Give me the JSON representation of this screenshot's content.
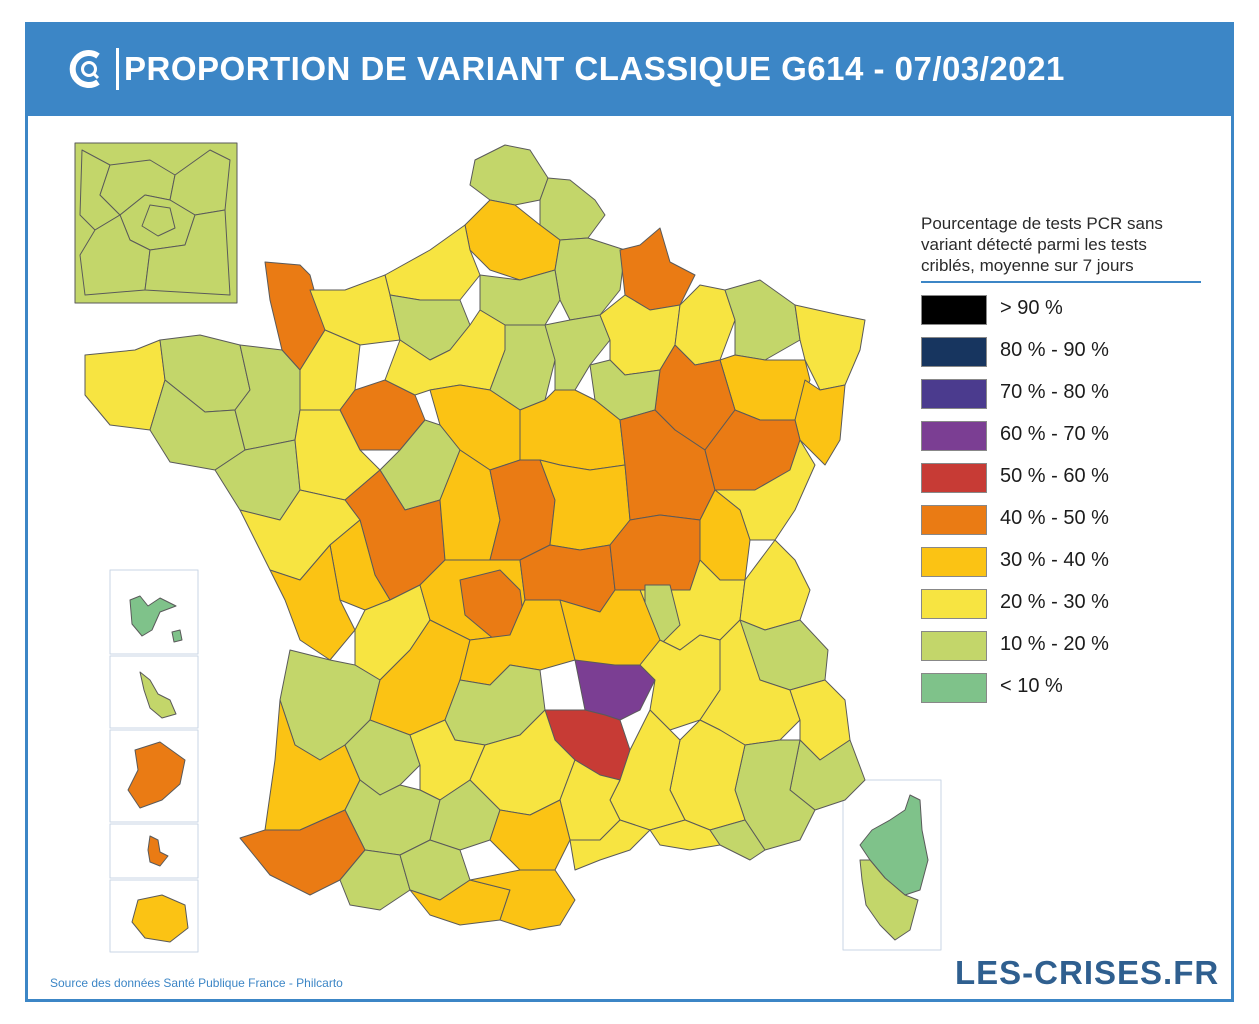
{
  "header": {
    "title": "PROPORTION DE VARIANT CLASSIQUE G614 - 07/03/2021"
  },
  "colors": {
    "brand_blue": "#3c86c6",
    "gt90": "#000000",
    "r80_90": "#17355f",
    "r70_80": "#4b3b8e",
    "r60_70": "#7b3e93",
    "r50_60": "#c73b35",
    "r40_50": "#ea7b14",
    "r30_40": "#fbc314",
    "r20_30": "#f7e441",
    "r10_20": "#c3d66a",
    "lt10": "#7fc28a"
  },
  "legend": {
    "description": [
      "Pourcentage de tests PCR sans",
      "variant détecté parmi les tests",
      "criblés, moyenne sur 7 jours"
    ],
    "items": [
      {
        "label": "> 90 %",
        "color": "#000000"
      },
      {
        "label": "80 % - 90 %",
        "color": "#17355f"
      },
      {
        "label": "70 % - 80 %",
        "color": "#4b3b8e"
      },
      {
        "label": "60 % - 70 %",
        "color": "#7b3e93"
      },
      {
        "label": "50 % - 60 %",
        "color": "#c73b35"
      },
      {
        "label": "40 % - 50 %",
        "color": "#ea7b14"
      },
      {
        "label": "30 % - 40 %",
        "color": "#fbc314"
      },
      {
        "label": "20 % - 30 %",
        "color": "#f7e441"
      },
      {
        "label": "10 % - 20 %",
        "color": "#c3d66a"
      },
      {
        "label": "< 10 %",
        "color": "#7fc28a"
      }
    ]
  },
  "footer": {
    "source": "Source des données Santé Publique France - Philcarto",
    "brand": "LES-CRISES.FR"
  }
}
